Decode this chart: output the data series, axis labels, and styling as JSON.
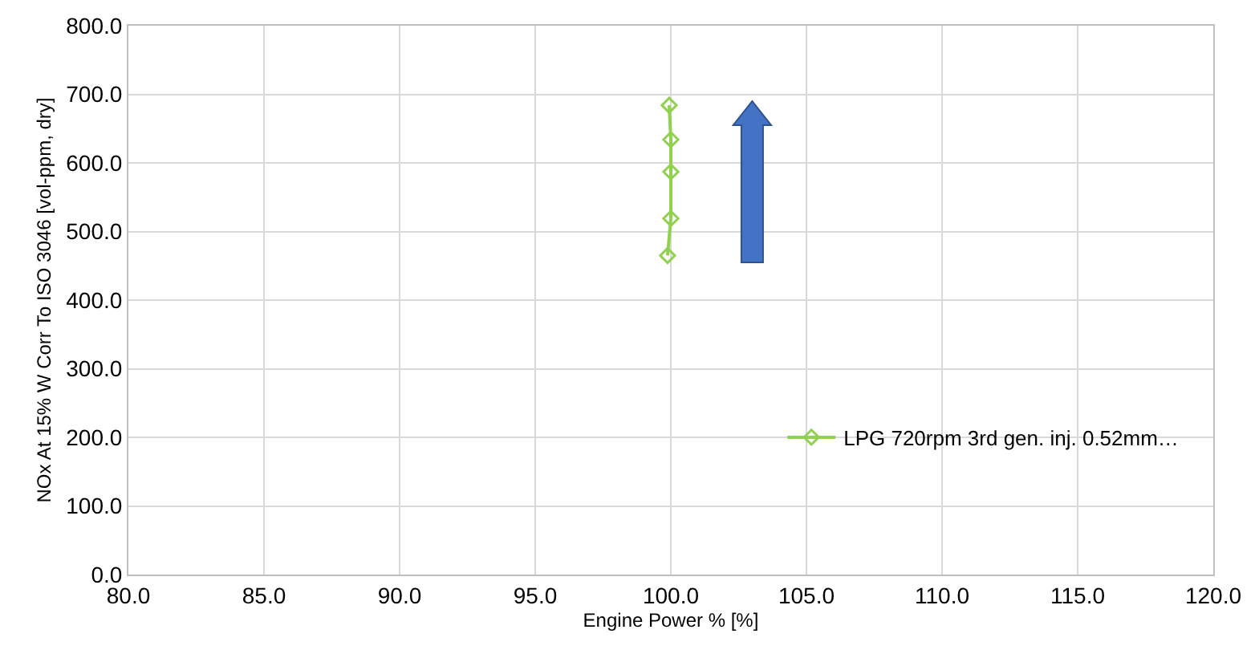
{
  "chart_data": {
    "type": "line",
    "xlabel": "Engine Power % [%]",
    "ylabel": "NOx At 15% W Corr To ISO 3046 [vol-ppm, dry]",
    "x": [
      99.88,
      100.0,
      100.0,
      100.0,
      99.94
    ],
    "series": [
      {
        "name": "LPG 720rpm 3rd gen. inj. 0.52mm…",
        "color": "#92d050",
        "values": [
          465,
          519,
          587,
          634,
          684
        ]
      }
    ],
    "xlim": [
      80,
      120
    ],
    "xticks": [
      {
        "value": 80,
        "label": "80.0"
      },
      {
        "value": 85,
        "label": "85.0"
      },
      {
        "value": 90,
        "label": "90.0"
      },
      {
        "value": 95,
        "label": "95.0"
      },
      {
        "value": 100,
        "label": "100.0"
      },
      {
        "value": 105,
        "label": "105.0"
      },
      {
        "value": 110,
        "label": "110.0"
      },
      {
        "value": 115,
        "label": "115.0"
      },
      {
        "value": 120,
        "label": "120.0"
      }
    ],
    "ylim": [
      0,
      800
    ],
    "yticks": [
      {
        "value": 0,
        "label": "0.0"
      },
      {
        "value": 100,
        "label": "100.0"
      },
      {
        "value": 200,
        "label": "200.0"
      },
      {
        "value": 300,
        "label": "300.0"
      },
      {
        "value": 400,
        "label": "400.0"
      },
      {
        "value": 500,
        "label": "500.0"
      },
      {
        "value": 600,
        "label": "600.0"
      },
      {
        "value": 700,
        "label": "700.0"
      },
      {
        "value": 800,
        "label": "800.0"
      }
    ],
    "grid": true,
    "legend": "right",
    "marker": "diamond",
    "line_style": "solid"
  }
}
